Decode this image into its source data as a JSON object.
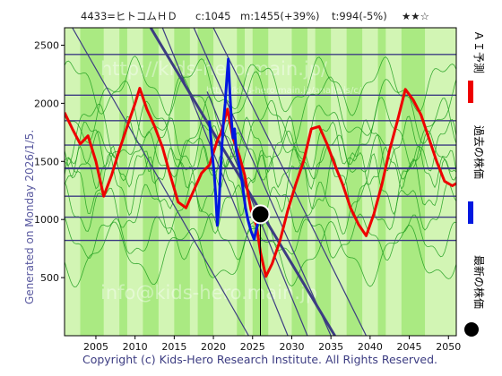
{
  "header": {
    "code_name": "4433=ヒトコムＨＤ",
    "current": "c:1045",
    "max": "m:1455(+39%)",
    "min": "t:994(-5%)",
    "stars": "★★☆"
  },
  "side": {
    "generated": "Generated on Monday 2026/1/5."
  },
  "legend": {
    "ai_forecast": "ＡＩ予測",
    "past_price": "過去の株価",
    "latest_price": "最新の株価"
  },
  "footer": {
    "copyright": "Copyright (c) Kids-Hero Research Institute. All Rights Reserved."
  },
  "watermark": {
    "top": "http://kids-hero.main.jp/",
    "middle": "http://kids-hero.main.jp/analysis/c/",
    "bottom": "info@kids-hero.main.jp"
  },
  "colors": {
    "band_light": "#d2f5b4",
    "band_dark": "#aaea82",
    "thin_green": "#1e9e1e",
    "navy": "#3c3c82",
    "forecast": "#ee0000",
    "past": "#0018e0",
    "marker": "#000000"
  },
  "chart_data": {
    "type": "line",
    "title": "4433=ヒトコムＨＤ",
    "xlabel": "",
    "ylabel": "",
    "xlim": [
      2001,
      2051
    ],
    "ylim": [
      0,
      2650
    ],
    "x_ticks": [
      2005,
      2010,
      2015,
      2020,
      2025,
      2030,
      2035,
      2040,
      2045,
      2050
    ],
    "y_ticks": [
      500,
      1000,
      1500,
      2000,
      2500
    ],
    "grid": true,
    "legend_position": "right",
    "horizontal_levels": [
      2420,
      2070,
      1850,
      1640,
      1440,
      1200,
      1020,
      820
    ],
    "trend_lines": [
      {
        "from": [
          2017.5,
          2650
        ],
        "to": [
          2035.0,
          0
        ]
      },
      {
        "from": [
          2020.0,
          2650
        ],
        "to": [
          2039.5,
          0
        ]
      },
      {
        "from": [
          2013.5,
          2650
        ],
        "to": [
          2029.5,
          0
        ]
      },
      {
        "from": [
          2019.2,
          2100
        ],
        "to": [
          2032.0,
          0
        ]
      },
      {
        "from": [
          2002.0,
          2650
        ],
        "to": [
          2024.5,
          0
        ]
      }
    ],
    "thick_trend_line": {
      "from": [
        2012.0,
        2650
      ],
      "to": [
        2035.5,
        0
      ]
    },
    "thin_green_lines": [
      {
        "amp": 160,
        "base": 1550,
        "phase": 0.0,
        "period": 6.0
      },
      {
        "amp": 200,
        "base": 1300,
        "phase": 1.1,
        "period": 4.8
      },
      {
        "amp": 230,
        "base": 1750,
        "phase": 2.2,
        "period": 7.4
      },
      {
        "amp": 170,
        "base": 1100,
        "phase": 3.0,
        "period": 5.5
      },
      {
        "amp": 240,
        "base": 1950,
        "phase": 0.6,
        "period": 8.8
      },
      {
        "amp": 150,
        "base": 850,
        "phase": 4.2,
        "period": 6.4
      },
      {
        "amp": 190,
        "base": 2150,
        "phase": 5.1,
        "period": 7.9
      },
      {
        "amp": 210,
        "base": 700,
        "phase": 2.7,
        "period": 9.3
      },
      {
        "amp": 140,
        "base": 1450,
        "phase": 3.9,
        "period": 3.9
      },
      {
        "amp": 180,
        "base": 1650,
        "phase": 1.8,
        "period": 5.1
      }
    ],
    "series": [
      {
        "name": "ＡＩ予測",
        "color": "#ee0000",
        "points": [
          [
            2001.0,
            1920
          ],
          [
            2002.0,
            1780
          ],
          [
            2003.0,
            1650
          ],
          [
            2004.0,
            1720
          ],
          [
            2005.0,
            1500
          ],
          [
            2006.0,
            1200
          ],
          [
            2007.0,
            1380
          ],
          [
            2008.0,
            1600
          ],
          [
            2009.0,
            1800
          ],
          [
            2010.0,
            2000
          ],
          [
            2010.6,
            2130
          ],
          [
            2011.5,
            1950
          ],
          [
            2012.5,
            1800
          ],
          [
            2013.5,
            1620
          ],
          [
            2014.5,
            1380
          ],
          [
            2015.5,
            1150
          ],
          [
            2016.5,
            1100
          ],
          [
            2017.5,
            1250
          ],
          [
            2018.5,
            1400
          ],
          [
            2019.5,
            1470
          ],
          [
            2020.5,
            1680
          ],
          [
            2021.0,
            1750
          ],
          [
            2021.8,
            1950
          ],
          [
            2022.5,
            1700
          ],
          [
            2023.3,
            1550
          ],
          [
            2024.0,
            1380
          ],
          [
            2024.8,
            1080
          ],
          [
            2025.5,
            950
          ],
          [
            2026.0,
            720
          ],
          [
            2026.7,
            510
          ],
          [
            2027.5,
            620
          ],
          [
            2028.5,
            820
          ],
          [
            2029.5,
            1080
          ],
          [
            2030.5,
            1300
          ],
          [
            2031.5,
            1500
          ],
          [
            2032.5,
            1780
          ],
          [
            2033.5,
            1800
          ],
          [
            2034.5,
            1650
          ],
          [
            2035.5,
            1470
          ],
          [
            2036.5,
            1300
          ],
          [
            2037.5,
            1100
          ],
          [
            2038.5,
            960
          ],
          [
            2039.5,
            860
          ],
          [
            2040.5,
            1050
          ],
          [
            2041.5,
            1300
          ],
          [
            2042.5,
            1600
          ],
          [
            2043.5,
            1850
          ],
          [
            2044.5,
            2120
          ],
          [
            2045.5,
            2030
          ],
          [
            2046.5,
            1900
          ],
          [
            2047.5,
            1700
          ],
          [
            2048.5,
            1500
          ],
          [
            2049.5,
            1330
          ],
          [
            2050.5,
            1290
          ],
          [
            2051.0,
            1310
          ]
        ]
      },
      {
        "name": "過去の株価",
        "color": "#0018e0",
        "points": [
          [
            2019.5,
            1850
          ],
          [
            2019.8,
            1600
          ],
          [
            2020.1,
            1400
          ],
          [
            2020.3,
            1200
          ],
          [
            2020.5,
            950
          ],
          [
            2020.7,
            1100
          ],
          [
            2020.9,
            1400
          ],
          [
            2021.1,
            1650
          ],
          [
            2021.3,
            1850
          ],
          [
            2021.5,
            2000
          ],
          [
            2021.7,
            2200
          ],
          [
            2021.9,
            2380
          ],
          [
            2022.1,
            2100
          ],
          [
            2022.3,
            1850
          ],
          [
            2022.5,
            1700
          ],
          [
            2022.7,
            1780
          ],
          [
            2022.9,
            1600
          ],
          [
            2023.2,
            1500
          ],
          [
            2023.5,
            1400
          ],
          [
            2023.8,
            1250
          ],
          [
            2024.1,
            1100
          ],
          [
            2024.4,
            1000
          ],
          [
            2024.8,
            900
          ],
          [
            2025.2,
            830
          ],
          [
            2025.6,
            950
          ],
          [
            2026.0,
            1045
          ]
        ]
      }
    ],
    "latest_point": {
      "x": 2026.0,
      "y": 1045,
      "label": "最新の株価"
    }
  }
}
